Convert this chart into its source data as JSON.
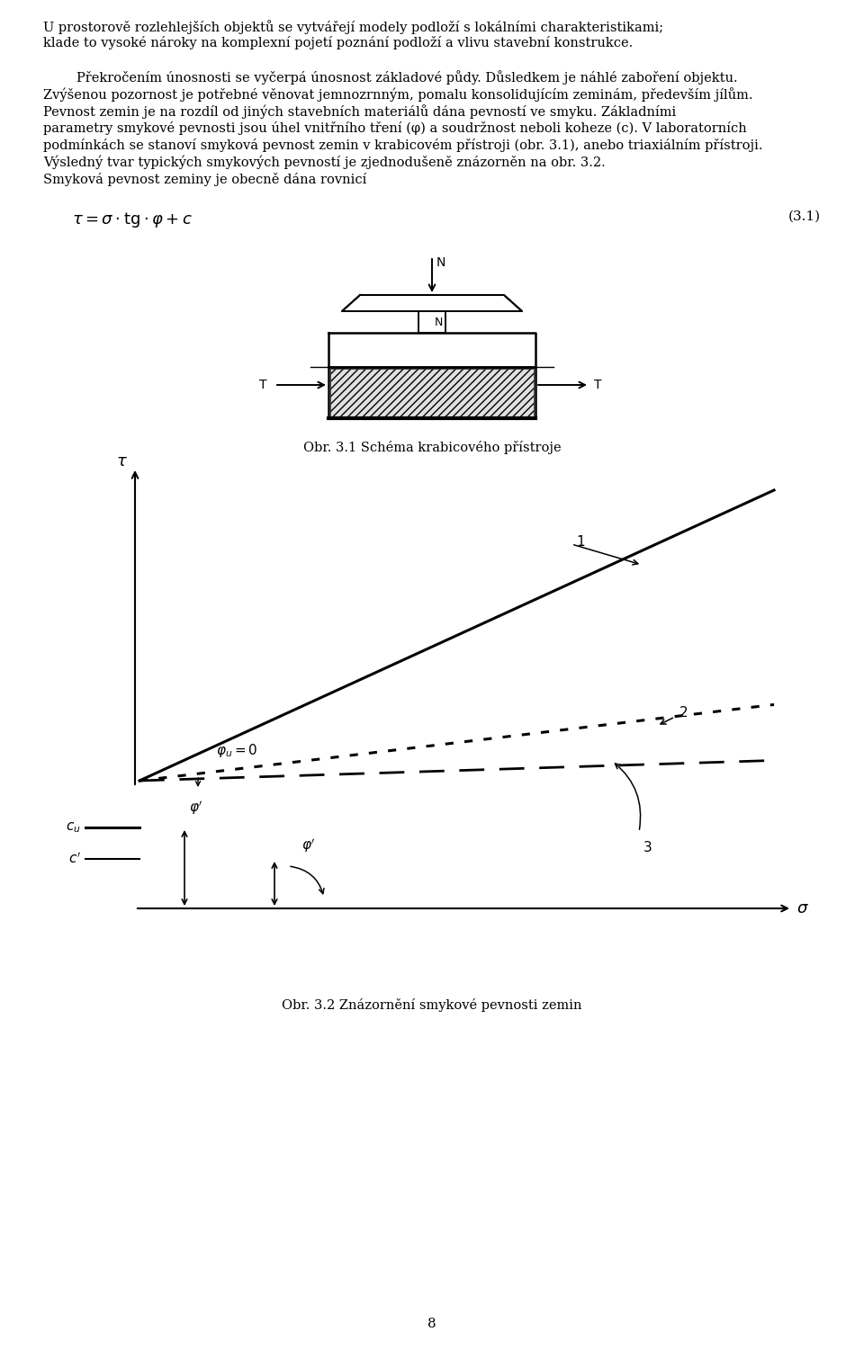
{
  "bg_color": "#ffffff",
  "text_color": "#000000",
  "formula_number": "(3.1)",
  "caption1": "Obr. 3.1 Schéma krabicového přístroje",
  "caption2": "Obr. 3.2 Znázornění smykové pevnosti zemin",
  "page_number": "8"
}
